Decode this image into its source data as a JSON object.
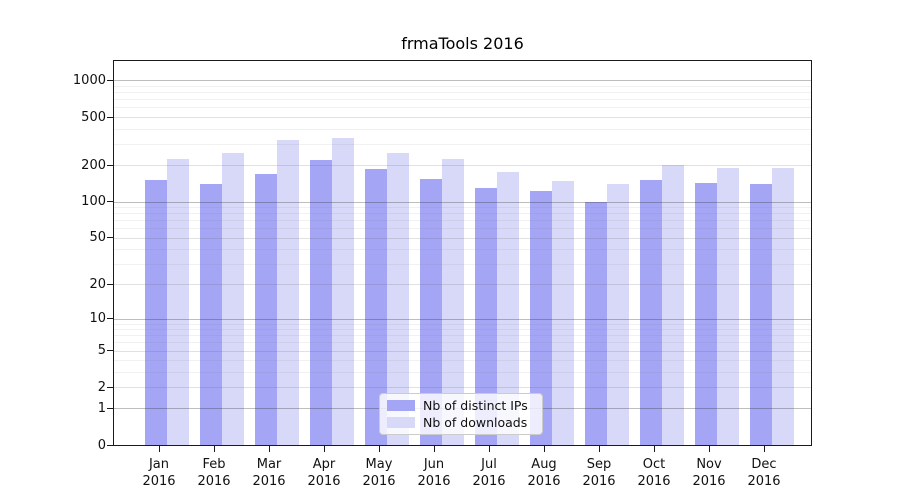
{
  "title": "frmaTools 2016",
  "legend": {
    "items": [
      {
        "label": "Nb of distinct IPs",
        "color": "#a5a5f6"
      },
      {
        "label": "Nb of downloads",
        "color": "#d8d8f8"
      }
    ]
  },
  "chart_data": {
    "type": "bar",
    "title": "frmaTools 2016",
    "categories": [
      "Jan",
      "Feb",
      "Mar",
      "Apr",
      "May",
      "Jun",
      "Jul",
      "Aug",
      "Sep",
      "Oct",
      "Nov",
      "Dec"
    ],
    "category_year": "2016",
    "series": [
      {
        "name": "Nb of distinct IPs",
        "color": "#a5a5f6",
        "values": [
          150,
          140,
          170,
          222,
          186,
          153,
          130,
          122,
          100,
          150,
          143,
          140
        ]
      },
      {
        "name": "Nb of downloads",
        "color": "#d8d8f8",
        "values": [
          225,
          253,
          322,
          337,
          251,
          226,
          176,
          147,
          140,
          200,
          190,
          188
        ]
      }
    ],
    "y_axis": {
      "scale": "log1p",
      "tick_labels": [
        0,
        1,
        2,
        5,
        10,
        20,
        50,
        100,
        200,
        500,
        1000
      ],
      "major_gridlines": [
        1,
        10,
        100,
        1000
      ],
      "labeled_gridlines": [
        2,
        5,
        20,
        50,
        200,
        500
      ],
      "minor_gridlines": [
        3,
        4,
        6,
        7,
        8,
        9,
        30,
        40,
        60,
        70,
        80,
        90,
        300,
        400,
        600,
        700,
        800,
        900
      ],
      "top_value": 1446,
      "bottom_value": 0
    },
    "legend_position": "lower center",
    "grid": true
  }
}
